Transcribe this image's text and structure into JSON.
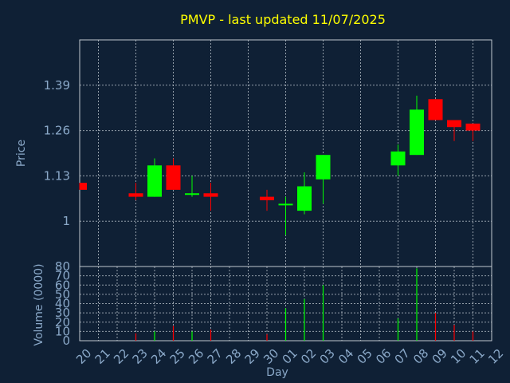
{
  "title": "PMVP - last updated 11/07/2025",
  "colors": {
    "background": "#0f2035",
    "up": "#00ff00",
    "down": "#ff0000",
    "title": "#ffff00",
    "axis_text": "#8aa8c8",
    "grid": "#c0c8d0"
  },
  "chart_data": [
    {
      "type": "candlestick",
      "ylabel": "Price",
      "yticks": [
        "1",
        "1.13",
        "1.26",
        "1.39"
      ],
      "ytick_values": [
        1.0,
        1.13,
        1.26,
        1.39
      ],
      "ylim": [
        0.87,
        1.52
      ],
      "grid": true,
      "candles": [
        {
          "day": "20",
          "open": 1.11,
          "close": 1.09,
          "high": 1.11,
          "low": 1.09
        },
        {
          "day": "23",
          "open": 1.08,
          "close": 1.07,
          "high": 1.11,
          "low": 1.06
        },
        {
          "day": "24",
          "open": 1.07,
          "close": 1.16,
          "high": 1.18,
          "low": 1.07
        },
        {
          "day": "25",
          "open": 1.16,
          "close": 1.09,
          "high": 1.18,
          "low": 1.09
        },
        {
          "day": "26",
          "open": 1.08,
          "close": 1.08,
          "high": 1.13,
          "low": 1.07
        },
        {
          "day": "27",
          "open": 1.08,
          "close": 1.07,
          "high": 1.11,
          "low": 1.03
        },
        {
          "day": "30",
          "open": 1.07,
          "close": 1.06,
          "high": 1.09,
          "low": 1.03
        },
        {
          "day": "01",
          "open": 1.05,
          "close": 1.05,
          "high": 1.07,
          "low": 0.96
        },
        {
          "day": "02",
          "open": 1.03,
          "close": 1.1,
          "high": 1.14,
          "low": 1.02
        },
        {
          "day": "03",
          "open": 1.12,
          "close": 1.19,
          "high": 1.19,
          "low": 1.05
        },
        {
          "day": "07",
          "open": 1.16,
          "close": 1.2,
          "high": 1.22,
          "low": 1.13
        },
        {
          "day": "08",
          "open": 1.19,
          "close": 1.32,
          "high": 1.36,
          "low": 1.19
        },
        {
          "day": "09",
          "open": 1.35,
          "close": 1.29,
          "high": 1.35,
          "low": 1.29
        },
        {
          "day": "10",
          "open": 1.29,
          "close": 1.27,
          "high": 1.29,
          "low": 1.23
        },
        {
          "day": "11",
          "open": 1.28,
          "close": 1.26,
          "high": 1.28,
          "low": 1.23
        }
      ]
    },
    {
      "type": "bar",
      "ylabel": "Volume (0000)",
      "xlabel": "Day",
      "yticks": [
        "0",
        "10",
        "20",
        "30",
        "40",
        "50",
        "60",
        "70",
        "80"
      ],
      "ytick_values": [
        0,
        10,
        20,
        30,
        40,
        50,
        60,
        70,
        80
      ],
      "ylim": [
        0,
        80
      ],
      "grid": true,
      "categories": [
        "20",
        "21",
        "22",
        "23",
        "24",
        "25",
        "26",
        "27",
        "28",
        "29",
        "30",
        "01",
        "02",
        "03",
        "04",
        "05",
        "06",
        "07",
        "08",
        "09",
        "10",
        "11",
        "12"
      ],
      "values": [
        0,
        0,
        0,
        8,
        10,
        16,
        10,
        12,
        0,
        0,
        7,
        35,
        45,
        60,
        0,
        0,
        0,
        24,
        78,
        30,
        17,
        10,
        0
      ],
      "direction": [
        "none",
        "none",
        "none",
        "down",
        "up",
        "down",
        "up",
        "down",
        "none",
        "none",
        "down",
        "up",
        "up",
        "up",
        "none",
        "none",
        "none",
        "up",
        "up",
        "down",
        "down",
        "down",
        "none"
      ]
    }
  ]
}
